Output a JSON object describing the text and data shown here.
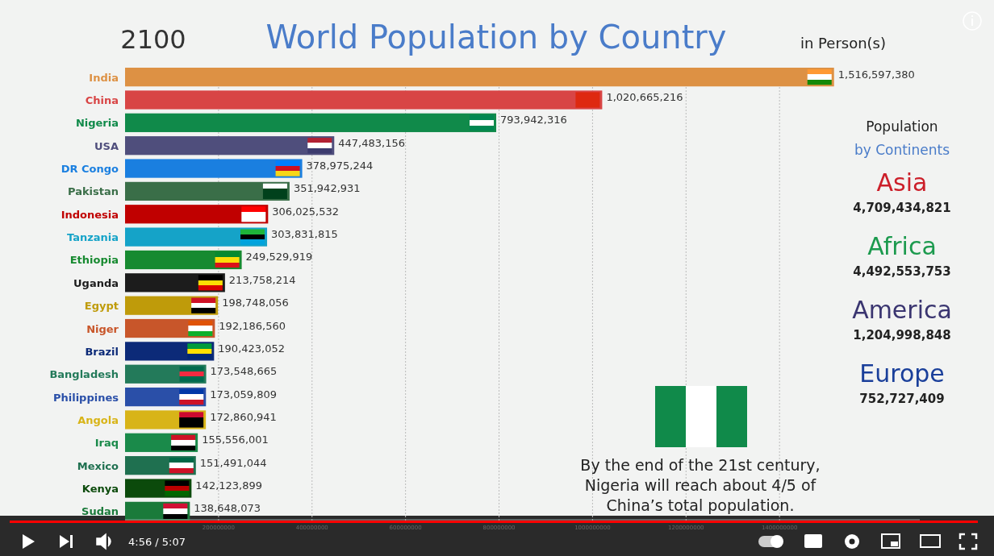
{
  "chart_data": [
    {
      "type": "bar",
      "orientation": "horizontal",
      "title": "World Population by Country",
      "categories": [
        "India",
        "China",
        "Nigeria",
        "USA",
        "DR Congo",
        "Pakistan",
        "Indonesia",
        "Tanzania",
        "Ethiopia",
        "Uganda",
        "Egypt",
        "Niger",
        "Brazil",
        "Bangladesh",
        "Philippines",
        "Angola",
        "Iraq",
        "Mexico",
        "Kenya",
        "Sudan"
      ],
      "values": [
        1516597380,
        1020665216,
        793942316,
        447483156,
        378975244,
        351942931,
        306025532,
        303831815,
        249529919,
        213758214,
        198748056,
        192186560,
        190423052,
        173548665,
        173059809,
        172860941,
        155556001,
        151491044,
        142123899,
        138648073
      ],
      "colors": [
        "#dd9144",
        "#d84545",
        "#108a4a",
        "#4f4e7c",
        "#1a7fe0",
        "#3a6e48",
        "#c00000",
        "#15a3c8",
        "#178a30",
        "#1c1c1c",
        "#bf9b0a",
        "#c8562a",
        "#0c2a78",
        "#237a5a",
        "#2a4fa8",
        "#d8b418",
        "#1a8a4a",
        "#1f7050",
        "#0b4a0b",
        "#1a7a3a"
      ],
      "xlim": [
        0,
        1700000000
      ],
      "xticks": [
        200000000,
        400000000,
        600000000,
        800000000,
        1000000000,
        1200000000,
        1400000000
      ],
      "value_labels": [
        "1,516,597,380",
        "1,020,665,216",
        "793,942,316",
        "447,483,156",
        "378,975,244",
        "351,942,931",
        "306,025,532",
        "303,831,815",
        "249,529,919",
        "213,758,214",
        "198,748,056",
        "192,186,560",
        "190,423,052",
        "173,548,665",
        "173,059,809",
        "172,860,941",
        "155,556,001",
        "151,491,044",
        "142,123,899",
        "138,648,073"
      ],
      "grid": "x",
      "annotations": [
        "2100",
        "in Person(s)",
        "By the end of the 21st century, Nigeria will reach about 4/5 of China’s total population.",
        "4:56 / 5:07"
      ]
    },
    {
      "type": "other",
      "title": "Population by Continents",
      "categories": [
        "Asia",
        "Africa",
        "America",
        "Europe"
      ],
      "colors": [
        "#cc1f2a",
        "#1c9a4e",
        "#3a3570",
        "#1a3f9a"
      ],
      "annotations": [
        "4,709,434,821",
        "4,492,553,753",
        "1,204,998,848",
        "752,727,409"
      ]
    }
  ]
}
